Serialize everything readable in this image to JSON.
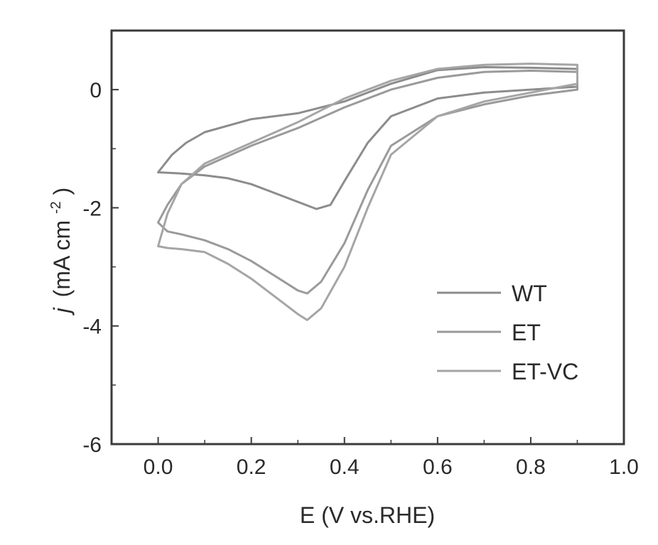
{
  "chart_data": {
    "type": "line",
    "xlabel": "E (V vs.RHE)",
    "ylabel": {
      "prefix": "j",
      "unit": "(mA cm",
      "exponent": "-2",
      "close": ")"
    },
    "xlim": [
      -0.1,
      1.0
    ],
    "ylim": [
      -6,
      1
    ],
    "xticks": [
      0.0,
      0.2,
      0.4,
      0.6,
      0.8,
      1.0
    ],
    "xtick_labels": [
      "0.0",
      "0.2",
      "0.4",
      "0.6",
      "0.8",
      "1.0"
    ],
    "yticks": [
      -6,
      -4,
      -2,
      0
    ],
    "ytick_labels": [
      "-6",
      "-4",
      "-2",
      "0"
    ],
    "grid": false,
    "legend_position": "lower-right",
    "series": [
      {
        "name": "WT",
        "color": "#8c8c8c",
        "forward": [
          [
            0.9,
            0.35
          ],
          [
            0.8,
            0.37
          ],
          [
            0.7,
            0.38
          ],
          [
            0.6,
            0.33
          ],
          [
            0.5,
            0.1
          ],
          [
            0.4,
            -0.2
          ],
          [
            0.3,
            -0.4
          ],
          [
            0.2,
            -0.5
          ],
          [
            0.1,
            -0.72
          ],
          [
            0.06,
            -0.9
          ],
          [
            0.03,
            -1.1
          ],
          [
            0.0,
            -1.4
          ]
        ],
        "reverse": [
          [
            0.0,
            -1.4
          ],
          [
            0.05,
            -1.42
          ],
          [
            0.1,
            -1.45
          ],
          [
            0.15,
            -1.5
          ],
          [
            0.2,
            -1.6
          ],
          [
            0.25,
            -1.75
          ],
          [
            0.3,
            -1.9
          ],
          [
            0.34,
            -2.02
          ],
          [
            0.37,
            -1.95
          ],
          [
            0.4,
            -1.55
          ],
          [
            0.45,
            -0.9
          ],
          [
            0.5,
            -0.45
          ],
          [
            0.6,
            -0.15
          ],
          [
            0.7,
            -0.05
          ],
          [
            0.8,
            0.0
          ],
          [
            0.9,
            0.05
          ]
        ]
      },
      {
        "name": "ET",
        "color": "#9a9a9a",
        "forward": [
          [
            0.9,
            0.3
          ],
          [
            0.8,
            0.32
          ],
          [
            0.7,
            0.3
          ],
          [
            0.6,
            0.2
          ],
          [
            0.5,
            0.0
          ],
          [
            0.4,
            -0.3
          ],
          [
            0.3,
            -0.65
          ],
          [
            0.2,
            -0.95
          ],
          [
            0.1,
            -1.3
          ],
          [
            0.05,
            -1.6
          ],
          [
            0.02,
            -1.95
          ],
          [
            0.0,
            -2.25
          ]
        ],
        "reverse": [
          [
            0.0,
            -2.25
          ],
          [
            0.02,
            -2.4
          ],
          [
            0.05,
            -2.45
          ],
          [
            0.1,
            -2.55
          ],
          [
            0.15,
            -2.7
          ],
          [
            0.2,
            -2.9
          ],
          [
            0.25,
            -3.15
          ],
          [
            0.3,
            -3.4
          ],
          [
            0.32,
            -3.45
          ],
          [
            0.35,
            -3.25
          ],
          [
            0.4,
            -2.6
          ],
          [
            0.45,
            -1.7
          ],
          [
            0.5,
            -0.95
          ],
          [
            0.6,
            -0.45
          ],
          [
            0.7,
            -0.25
          ],
          [
            0.8,
            -0.1
          ],
          [
            0.9,
            0.0
          ]
        ]
      },
      {
        "name": "ET-VC",
        "color": "#a5a5a5",
        "forward": [
          [
            0.9,
            0.42
          ],
          [
            0.8,
            0.44
          ],
          [
            0.7,
            0.42
          ],
          [
            0.6,
            0.35
          ],
          [
            0.5,
            0.15
          ],
          [
            0.4,
            -0.15
          ],
          [
            0.3,
            -0.55
          ],
          [
            0.2,
            -0.9
          ],
          [
            0.1,
            -1.25
          ],
          [
            0.05,
            -1.6
          ],
          [
            0.02,
            -2.1
          ],
          [
            0.0,
            -2.65
          ]
        ],
        "reverse": [
          [
            0.0,
            -2.65
          ],
          [
            0.02,
            -2.68
          ],
          [
            0.05,
            -2.7
          ],
          [
            0.1,
            -2.75
          ],
          [
            0.15,
            -2.95
          ],
          [
            0.2,
            -3.2
          ],
          [
            0.25,
            -3.5
          ],
          [
            0.3,
            -3.8
          ],
          [
            0.32,
            -3.9
          ],
          [
            0.35,
            -3.7
          ],
          [
            0.4,
            -3.0
          ],
          [
            0.45,
            -2.0
          ],
          [
            0.5,
            -1.1
          ],
          [
            0.6,
            -0.45
          ],
          [
            0.7,
            -0.2
          ],
          [
            0.8,
            -0.05
          ],
          [
            0.9,
            0.1
          ]
        ]
      }
    ]
  }
}
